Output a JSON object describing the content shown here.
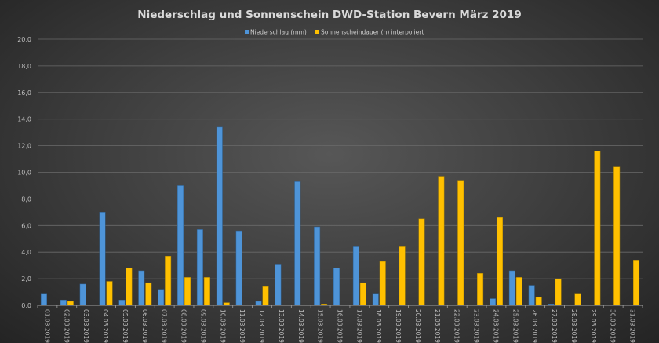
{
  "chart_data": {
    "type": "bar",
    "title": "Niederschlag  und  Sonnenschein  DWD-Station  Bevern  März  2019",
    "xlabel": "",
    "ylabel": "",
    "ylim": [
      0,
      20
    ],
    "yticks": [
      "0,0",
      "2,0",
      "4,0",
      "6,0",
      "8,0",
      "10,0",
      "12,0",
      "14,0",
      "16,0",
      "18,0",
      "20,0"
    ],
    "grid": true,
    "legend_position": "top",
    "categories": [
      "01.03.2019",
      "02.03.2019",
      "03.03.2019",
      "04.03.2019",
      "05.03.2019",
      "06.03.2019",
      "07.03.2019",
      "08.03.2019",
      "09.03.2019",
      "10.03.2019",
      "11.03.2019",
      "12.03.2019",
      "13.03.2019",
      "14.03.2019",
      "15.03.2019",
      "16.03.2019",
      "17.03.2019",
      "18.03.2019",
      "19.03.2019",
      "20.03.2019",
      "21.03.2019",
      "22.03.2019",
      "23.03.2019",
      "24.03.2019",
      "25.03.2019",
      "26.03.2019",
      "27.03.2019",
      "28.03.2019",
      "29.03.2019",
      "30.03.2019",
      "31.03.2019"
    ],
    "series": [
      {
        "name": "Niederschlag (mm)",
        "color": "#4e94d8",
        "values": [
          0.9,
          0.4,
          1.6,
          7.0,
          0.4,
          2.6,
          1.2,
          9.0,
          5.7,
          13.4,
          5.6,
          0.3,
          3.1,
          9.3,
          5.9,
          2.8,
          4.4,
          0.9,
          0,
          0,
          0,
          0,
          0,
          0.5,
          2.6,
          1.5,
          0.1,
          0,
          0,
          0,
          0
        ]
      },
      {
        "name": "Sonnenscheindauer (h) interpoliert",
        "color": "#ffc000",
        "values": [
          0,
          0.3,
          0,
          1.8,
          2.8,
          1.7,
          3.7,
          2.1,
          2.1,
          0.2,
          0,
          1.4,
          0,
          0,
          0.1,
          0,
          1.7,
          3.3,
          4.4,
          6.5,
          9.7,
          9.4,
          2.4,
          6.6,
          2.1,
          0.6,
          2.0,
          0.9,
          11.6,
          10.4,
          3.4
        ]
      }
    ]
  }
}
